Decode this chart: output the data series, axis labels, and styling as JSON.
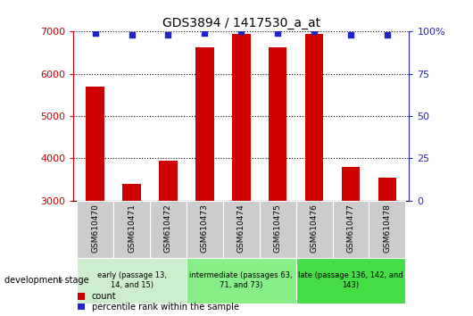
{
  "title": "GDS3894 / 1417530_a_at",
  "samples": [
    "GSM610470",
    "GSM610471",
    "GSM610472",
    "GSM610473",
    "GSM610474",
    "GSM610475",
    "GSM610476",
    "GSM610477",
    "GSM610478"
  ],
  "counts": [
    5700,
    3400,
    3950,
    6620,
    6950,
    6620,
    6950,
    3800,
    3550
  ],
  "percentile_ranks": [
    99,
    98,
    98,
    99,
    100,
    99,
    100,
    98,
    98
  ],
  "ylim_left": [
    3000,
    7000
  ],
  "ylim_right": [
    0,
    100
  ],
  "yticks_left": [
    3000,
    4000,
    5000,
    6000,
    7000
  ],
  "yticks_right": [
    0,
    25,
    50,
    75,
    100
  ],
  "bar_color": "#cc0000",
  "dot_color": "#2222cc",
  "grid_color": "black",
  "group_labels": [
    "early (passage 13,\n14, and 15)",
    "intermediate (passages 63,\n71, and 73)",
    "late (passage 136, 142, and\n143)"
  ],
  "group_ranges": [
    [
      0,
      3
    ],
    [
      3,
      6
    ],
    [
      6,
      9
    ]
  ],
  "group_bg_colors": [
    "#cceecc",
    "#88ee88",
    "#44dd44"
  ],
  "xlabel_area": "development stage",
  "legend_count": "count",
  "legend_percentile": "percentile rank within the sample",
  "bar_width": 0.5,
  "sample_bg": "#cccccc",
  "plot_bg": "white"
}
